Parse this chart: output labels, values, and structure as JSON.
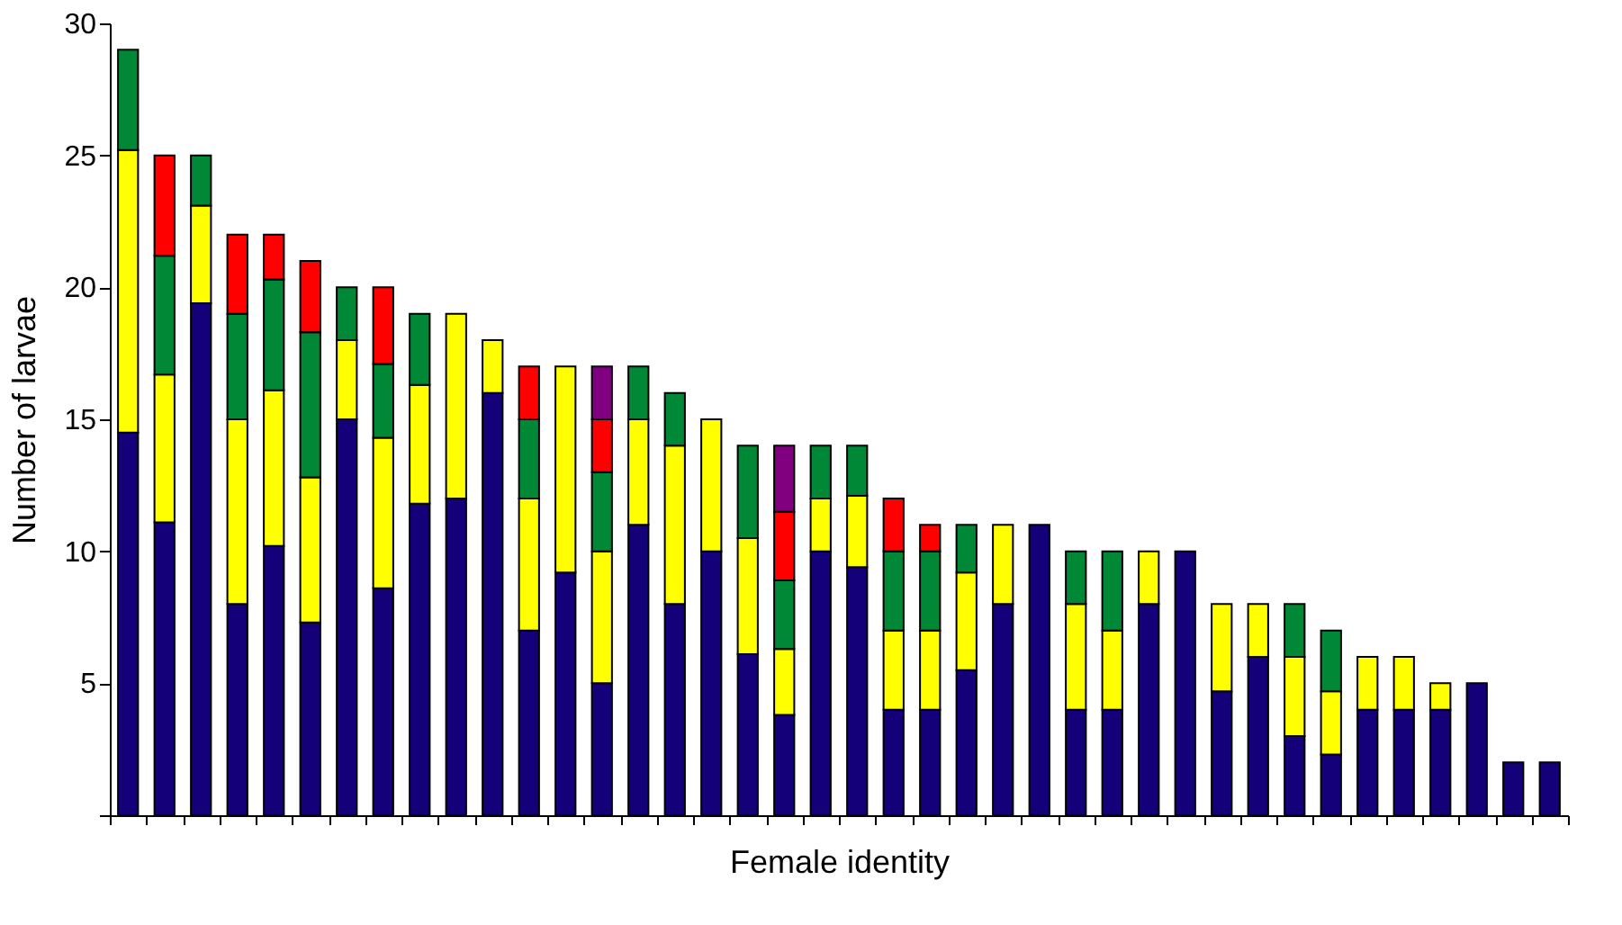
{
  "chart_data": {
    "type": "bar",
    "stacked": true,
    "xlabel": "Female identity",
    "ylabel": "Number of larvae",
    "categories": [
      null,
      null,
      null,
      null,
      null,
      null,
      null,
      null,
      null,
      null,
      null,
      null,
      null,
      null,
      null,
      null,
      null,
      null,
      null,
      null,
      null,
      null,
      null,
      null,
      null,
      null,
      null,
      null,
      null,
      null,
      null,
      null,
      null,
      null,
      null,
      null,
      null,
      null,
      null,
      null
    ],
    "series": [
      {
        "color": "#140078",
        "values": [
          14.5,
          11.1,
          19.4,
          8,
          10.2,
          7.3,
          15,
          8.6,
          11.8,
          12,
          16,
          7,
          9.2,
          5,
          11,
          8,
          10,
          6.1,
          3.8,
          10,
          9.4,
          4,
          4,
          5.5,
          8,
          11,
          4,
          4,
          8,
          10,
          4.7,
          6,
          3,
          2.3,
          4,
          4,
          4,
          5,
          2,
          2
        ]
      },
      {
        "color": "#ffff00",
        "values": [
          10.7,
          5.6,
          3.7,
          7,
          5.9,
          5.5,
          3,
          5.7,
          4.5,
          7,
          2,
          5,
          7.8,
          5,
          4,
          6,
          5,
          4.4,
          2.5,
          2,
          2.7,
          3,
          3,
          3.7,
          3,
          null,
          4,
          3,
          2,
          null,
          3.3,
          2,
          3,
          2.4,
          2,
          2,
          1,
          null,
          null,
          null
        ]
      },
      {
        "color": "#008837",
        "values": [
          3.8,
          4.5,
          1.9,
          4,
          4.2,
          5.5,
          2,
          2.8,
          2.7,
          null,
          null,
          3,
          null,
          3,
          2,
          2,
          null,
          3.5,
          2.6,
          2,
          1.9,
          3,
          3,
          1.8,
          null,
          null,
          2,
          3,
          null,
          null,
          null,
          null,
          2,
          2.3,
          null,
          null,
          null,
          null,
          null,
          null
        ]
      },
      {
        "color": "#ff0000",
        "values": [
          null,
          3.8,
          null,
          3,
          1.7,
          2.7,
          null,
          2.9,
          null,
          null,
          null,
          2,
          null,
          2,
          null,
          null,
          null,
          null,
          2.6,
          null,
          null,
          2,
          1,
          null,
          null,
          null,
          null,
          null,
          null,
          null,
          null,
          null,
          null,
          null,
          null,
          null,
          null,
          null,
          null,
          null
        ]
      },
      {
        "color": "#800080",
        "values": [
          null,
          null,
          null,
          null,
          null,
          null,
          null,
          null,
          null,
          null,
          null,
          null,
          null,
          2,
          null,
          null,
          null,
          null,
          2.5,
          null,
          null,
          null,
          null,
          null,
          null,
          null,
          null,
          null,
          null,
          null,
          null,
          null,
          null,
          null,
          null,
          null,
          null,
          null,
          null,
          null
        ]
      }
    ],
    "ylim": [
      0,
      30
    ],
    "yticks": [
      {
        "value": 0,
        "label": null
      },
      5,
      10,
      15,
      20,
      25,
      30
    ],
    "tick_labels": "y",
    "grid": false,
    "legend": false
  }
}
